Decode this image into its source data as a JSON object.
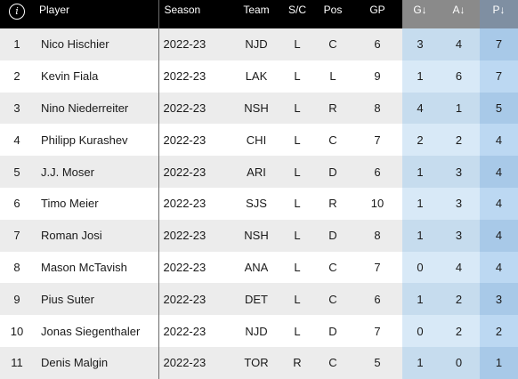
{
  "header": {
    "info_icon": "info-icon",
    "info_glyph": "i",
    "player": "Player",
    "season": "Season",
    "team": "Team",
    "sc": "S/C",
    "pos": "Pos",
    "gp": "GP",
    "g": "G↓",
    "a": "A↓",
    "p": "P↓"
  },
  "rows": [
    {
      "rank": "1",
      "player": "Nico Hischier",
      "season": "2022-23",
      "team": "NJD",
      "sc": "L",
      "pos": "C",
      "gp": "6",
      "g": "3",
      "a": "4",
      "p": "7"
    },
    {
      "rank": "2",
      "player": "Kevin Fiala",
      "season": "2022-23",
      "team": "LAK",
      "sc": "L",
      "pos": "L",
      "gp": "9",
      "g": "1",
      "a": "6",
      "p": "7"
    },
    {
      "rank": "3",
      "player": "Nino Niederreiter",
      "season": "2022-23",
      "team": "NSH",
      "sc": "L",
      "pos": "R",
      "gp": "8",
      "g": "4",
      "a": "1",
      "p": "5"
    },
    {
      "rank": "4",
      "player": "Philipp Kurashev",
      "season": "2022-23",
      "team": "CHI",
      "sc": "L",
      "pos": "C",
      "gp": "7",
      "g": "2",
      "a": "2",
      "p": "4"
    },
    {
      "rank": "5",
      "player": "J.J. Moser",
      "season": "2022-23",
      "team": "ARI",
      "sc": "L",
      "pos": "D",
      "gp": "6",
      "g": "1",
      "a": "3",
      "p": "4"
    },
    {
      "rank": "6",
      "player": "Timo Meier",
      "season": "2022-23",
      "team": "SJS",
      "sc": "L",
      "pos": "R",
      "gp": "10",
      "g": "1",
      "a": "3",
      "p": "4"
    },
    {
      "rank": "7",
      "player": "Roman Josi",
      "season": "2022-23",
      "team": "NSH",
      "sc": "L",
      "pos": "D",
      "gp": "8",
      "g": "1",
      "a": "3",
      "p": "4"
    },
    {
      "rank": "8",
      "player": "Mason McTavish",
      "season": "2022-23",
      "team": "ANA",
      "sc": "L",
      "pos": "C",
      "gp": "7",
      "g": "0",
      "a": "4",
      "p": "4"
    },
    {
      "rank": "9",
      "player": "Pius Suter",
      "season": "2022-23",
      "team": "DET",
      "sc": "L",
      "pos": "C",
      "gp": "6",
      "g": "1",
      "a": "2",
      "p": "3"
    },
    {
      "rank": "10",
      "player": "Jonas Siegenthaler",
      "season": "2022-23",
      "team": "NJD",
      "sc": "L",
      "pos": "D",
      "gp": "7",
      "g": "0",
      "a": "2",
      "p": "2"
    },
    {
      "rank": "11",
      "player": "Denis Malgin",
      "season": "2022-23",
      "team": "TOR",
      "sc": "R",
      "pos": "C",
      "gp": "5",
      "g": "1",
      "a": "0",
      "p": "1"
    }
  ]
}
